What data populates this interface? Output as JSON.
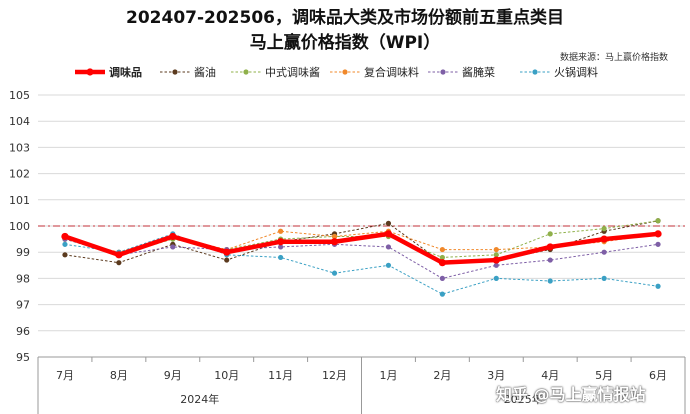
{
  "chart_data": {
    "type": "line",
    "title": "202407-202506，调味品大类及市场份额前五重点类目",
    "subtitle": "马上赢价格指数（WPI）",
    "source_note": "数据来源：马上赢价格指数",
    "categories": [
      "7月",
      "8月",
      "9月",
      "10月",
      "11月",
      "12月",
      "1月",
      "2月",
      "3月",
      "4月",
      "5月",
      "6月"
    ],
    "year_groups": [
      {
        "label": "2024年",
        "from": 0,
        "to": 5
      },
      {
        "label": "2025年",
        "from": 6,
        "to": 11
      }
    ],
    "ylim": [
      95,
      105
    ],
    "yticks": [
      95,
      96,
      97,
      98,
      99,
      100,
      101,
      102,
      103,
      104,
      105
    ],
    "reference_line": 100,
    "legend_position": "top",
    "series": [
      {
        "name": "调味品",
        "color": "#ff0000",
        "emphasis": true,
        "values": [
          99.6,
          98.9,
          99.6,
          99.0,
          99.4,
          99.4,
          99.7,
          98.6,
          98.7,
          99.2,
          99.5,
          99.7
        ]
      },
      {
        "name": "酱油",
        "color": "#5b3a1e",
        "values": [
          98.9,
          98.6,
          99.3,
          98.7,
          99.4,
          99.7,
          100.1,
          98.6,
          98.7,
          99.1,
          99.8,
          100.2
        ]
      },
      {
        "name": "中式调味酱",
        "color": "#8fb04a",
        "values": [
          99.5,
          98.9,
          99.5,
          99.1,
          99.5,
          99.6,
          99.6,
          98.8,
          98.9,
          99.7,
          99.9,
          100.2
        ]
      },
      {
        "name": "复合调味料",
        "color": "#f0882a",
        "values": [
          99.5,
          99.0,
          99.6,
          99.1,
          99.8,
          99.6,
          99.8,
          99.1,
          99.1,
          99.2,
          99.4,
          99.7
        ]
      },
      {
        "name": "酱腌菜",
        "color": "#7e5fa6",
        "values": [
          99.5,
          98.9,
          99.2,
          99.1,
          99.2,
          99.3,
          99.2,
          98.0,
          98.5,
          98.7,
          99.0,
          99.3
        ]
      },
      {
        "name": "火锅调料",
        "color": "#3aa0c4",
        "values": [
          99.3,
          99.0,
          99.7,
          98.9,
          98.8,
          98.2,
          98.5,
          97.4,
          98.0,
          97.9,
          98.0,
          97.7
        ]
      }
    ]
  },
  "watermark": "知乎 @马上赢情报站"
}
